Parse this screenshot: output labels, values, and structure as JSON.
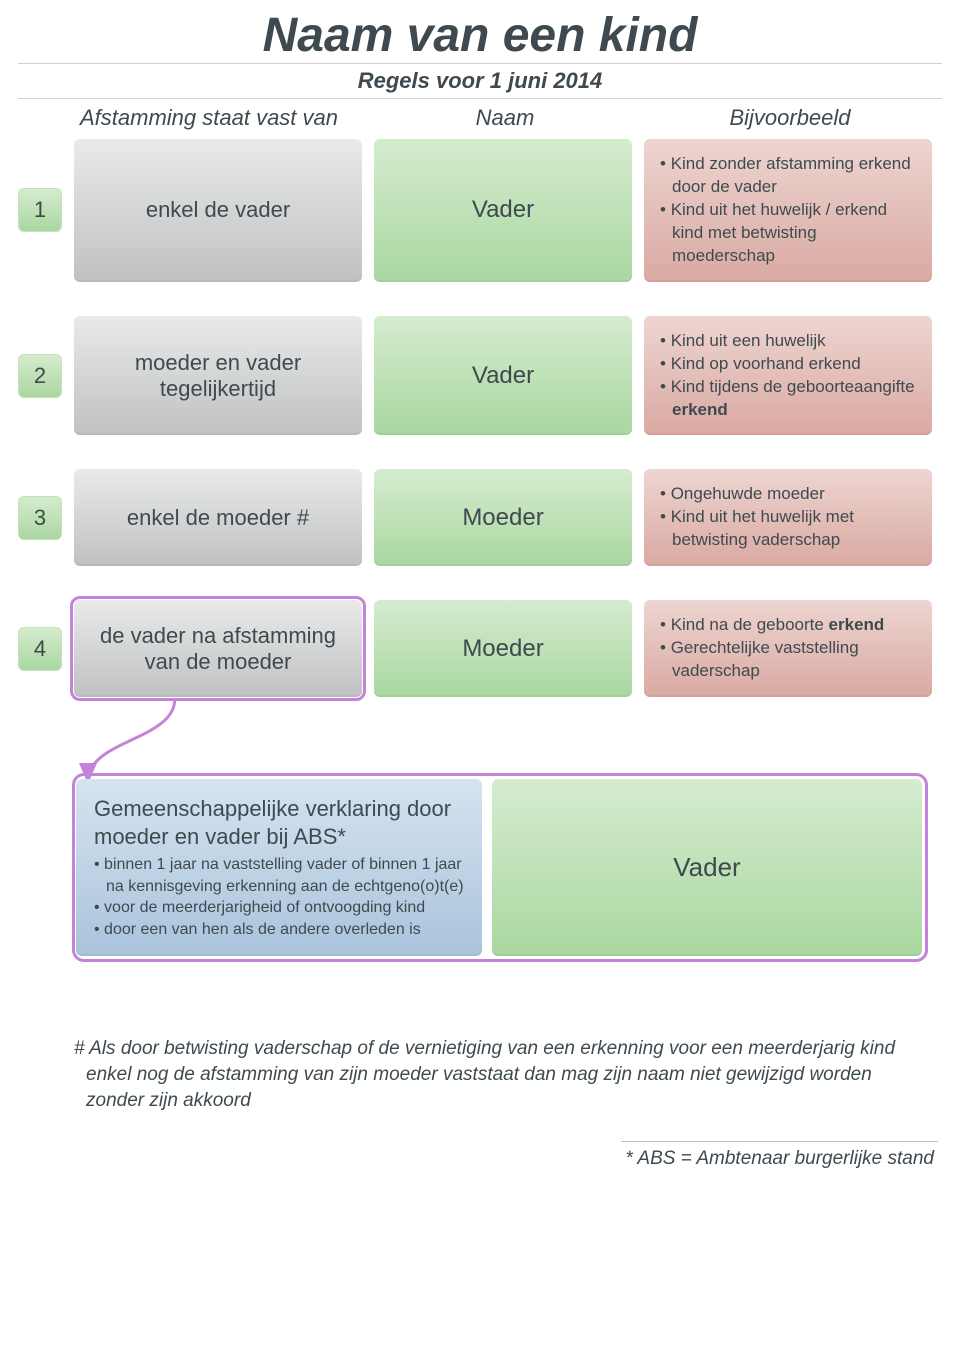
{
  "title": "Naam van een kind",
  "subtitle": "Regels voor 1 juni 2014",
  "headers": {
    "c1": "Afstamming staat vast van",
    "c2": "Naam",
    "c3": "Bijvoorbeeld"
  },
  "rows": [
    {
      "num": "1",
      "afstamming": "enkel de vader",
      "naam": "Vader",
      "bijv": [
        "Kind zonder afstamming erkend door de vader",
        "Kind uit het huwelijk / erkend kind met betwisting moederschap"
      ],
      "highlight": false
    },
    {
      "num": "2",
      "afstamming": "moeder en vader tegelijkertijd",
      "naam": "Vader",
      "bijv": [
        "Kind uit een huwelijk",
        "Kind op voorhand erkend",
        "Kind tijdens de geboorteaangifte <b>erkend</b>"
      ],
      "highlight": false
    },
    {
      "num": "3",
      "afstamming": "enkel de moeder #",
      "naam": "Moeder",
      "bijv": [
        "Ongehuwde moeder",
        "Kind uit het huwelijk met betwisting vaderschap"
      ],
      "highlight": false
    },
    {
      "num": "4",
      "afstamming": "de vader na afstamming van de moeder",
      "naam": "Moeder",
      "bijv": [
        "Kind na de geboorte <b>erkend</b>",
        "Gerechtelijke vaststelling vaderschap"
      ],
      "highlight": true
    }
  ],
  "detail": {
    "title": "Gemeenschappelijke verklaring door moeder en vader bij ABS*",
    "items": [
      "binnen 1 jaar na vaststelling vader of binnen 1 jaar na kennisgeving erkenning aan de echtgeno(o)t(e)",
      "voor de meerderjarigheid of ontvoogding kind",
      "door een van hen als de andere overleden is"
    ],
    "result": "Vader"
  },
  "note": "# Als door betwisting vaderschap of de vernietiging van een erkenning voor een meerderjarig kind enkel nog de afstamming van zijn moeder vaststaat dan mag zijn naam niet gewijzigd worden zonder zijn akkoord",
  "footnote": "* ABS = Ambtenaar burgerlijke stand",
  "colors": {
    "grey_top": "#e9eaea",
    "grey_bot": "#bfc1c2",
    "green_top": "#d5eccf",
    "green_bot": "#a9d7a0",
    "red_top": "#edd5d1",
    "red_bot": "#daa9a2",
    "blue_top": "#d6e3f0",
    "blue_bot": "#a9c3dc",
    "accent": "#c482d8",
    "text": "#3e4a4f"
  }
}
